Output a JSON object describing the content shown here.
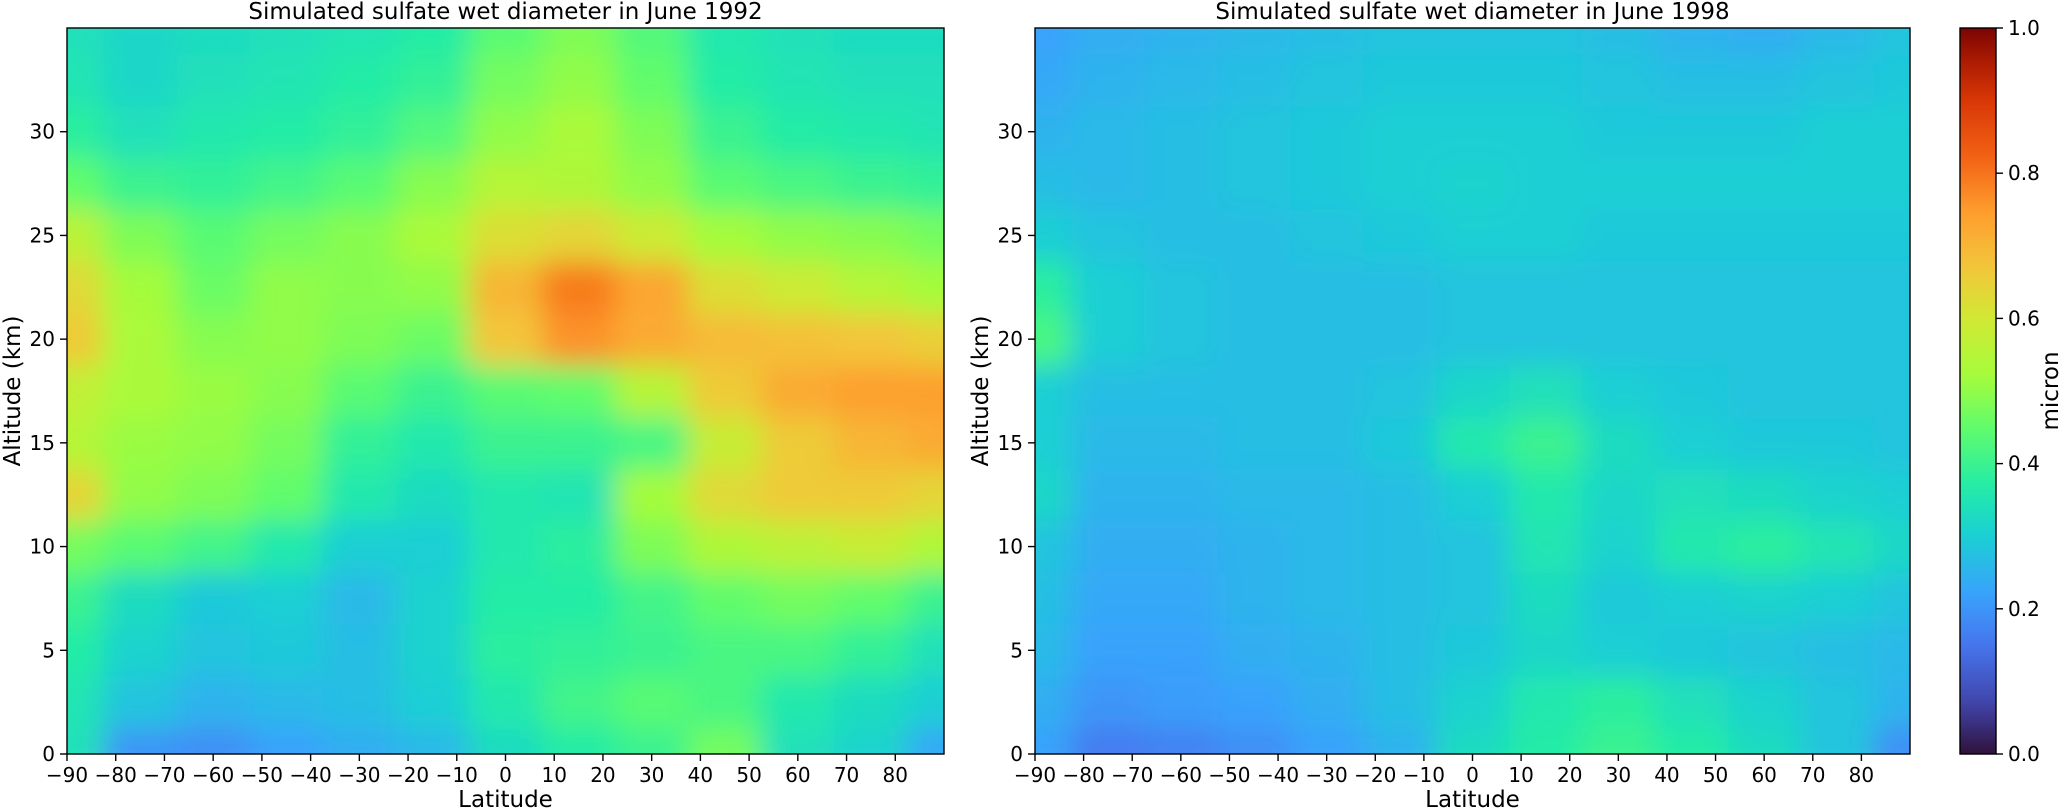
{
  "chart_data": [
    {
      "type": "heatmap",
      "title": "Simulated sulfate wet diameter in June 1992",
      "xlabel": "Latitude",
      "ylabel": "Altitude (km)",
      "xlim": [
        -90,
        90
      ],
      "ylim": [
        0,
        35
      ],
      "xticks": [
        -90,
        -80,
        -70,
        -60,
        -50,
        -40,
        -30,
        -20,
        -10,
        0,
        10,
        20,
        30,
        40,
        50,
        60,
        70,
        80
      ],
      "yticks": [
        0,
        5,
        10,
        15,
        20,
        25,
        30
      ],
      "latitudes": [
        -90,
        -75,
        -60,
        -45,
        -30,
        -15,
        0,
        15,
        30,
        45,
        60,
        75,
        90
      ],
      "altitudes": [
        0,
        2.5,
        5,
        7.5,
        10,
        12.5,
        15,
        17.5,
        20,
        22.5,
        25,
        27.5,
        30,
        32.5,
        35
      ],
      "values": [
        [
          0.34,
          0.2,
          0.19,
          0.22,
          0.24,
          0.26,
          0.33,
          0.37,
          0.4,
          0.47,
          0.34,
          0.31,
          0.23
        ],
        [
          0.35,
          0.28,
          0.25,
          0.26,
          0.27,
          0.3,
          0.36,
          0.41,
          0.44,
          0.42,
          0.36,
          0.33,
          0.3
        ],
        [
          0.37,
          0.31,
          0.28,
          0.29,
          0.27,
          0.31,
          0.38,
          0.39,
          0.4,
          0.42,
          0.42,
          0.39,
          0.34
        ],
        [
          0.4,
          0.33,
          0.29,
          0.3,
          0.26,
          0.31,
          0.37,
          0.37,
          0.41,
          0.45,
          0.47,
          0.45,
          0.4
        ],
        [
          0.47,
          0.44,
          0.41,
          0.36,
          0.3,
          0.3,
          0.36,
          0.38,
          0.48,
          0.54,
          0.56,
          0.58,
          0.54
        ],
        [
          0.64,
          0.5,
          0.48,
          0.45,
          0.36,
          0.33,
          0.36,
          0.35,
          0.52,
          0.63,
          0.66,
          0.66,
          0.64
        ],
        [
          0.55,
          0.51,
          0.5,
          0.47,
          0.39,
          0.36,
          0.4,
          0.4,
          0.42,
          0.58,
          0.66,
          0.7,
          0.72
        ],
        [
          0.57,
          0.53,
          0.51,
          0.49,
          0.44,
          0.4,
          0.44,
          0.45,
          0.55,
          0.66,
          0.72,
          0.74,
          0.74
        ],
        [
          0.66,
          0.53,
          0.49,
          0.5,
          0.48,
          0.46,
          0.67,
          0.76,
          0.72,
          0.69,
          0.68,
          0.67,
          0.65
        ],
        [
          0.63,
          0.52,
          0.46,
          0.5,
          0.49,
          0.5,
          0.7,
          0.79,
          0.73,
          0.62,
          0.59,
          0.55,
          0.52
        ],
        [
          0.56,
          0.48,
          0.44,
          0.47,
          0.49,
          0.53,
          0.62,
          0.64,
          0.59,
          0.52,
          0.5,
          0.49,
          0.47
        ],
        [
          0.45,
          0.4,
          0.39,
          0.41,
          0.44,
          0.49,
          0.55,
          0.54,
          0.5,
          0.44,
          0.42,
          0.4,
          0.39
        ],
        [
          0.38,
          0.34,
          0.36,
          0.37,
          0.39,
          0.43,
          0.5,
          0.53,
          0.48,
          0.4,
          0.37,
          0.36,
          0.35
        ],
        [
          0.35,
          0.32,
          0.34,
          0.35,
          0.37,
          0.39,
          0.47,
          0.5,
          0.45,
          0.37,
          0.35,
          0.34,
          0.34
        ],
        [
          0.34,
          0.32,
          0.33,
          0.34,
          0.35,
          0.37,
          0.44,
          0.48,
          0.43,
          0.36,
          0.34,
          0.33,
          0.33
        ]
      ]
    },
    {
      "type": "heatmap",
      "title": "Simulated sulfate wet diameter in June 1998",
      "xlabel": "Latitude",
      "ylabel": "Altitude (km)",
      "xlim": [
        -90,
        90
      ],
      "ylim": [
        0,
        35
      ],
      "xticks": [
        -90,
        -80,
        -70,
        -60,
        -50,
        -40,
        -30,
        -20,
        -10,
        0,
        10,
        20,
        30,
        40,
        50,
        60,
        70,
        80
      ],
      "yticks": [
        0,
        5,
        10,
        15,
        20,
        25,
        30
      ],
      "latitudes": [
        -90,
        -75,
        -60,
        -45,
        -30,
        -15,
        0,
        15,
        30,
        45,
        60,
        75,
        90
      ],
      "altitudes": [
        0,
        2.5,
        5,
        7.5,
        10,
        12.5,
        15,
        17.5,
        20,
        22.5,
        25,
        27.5,
        30,
        32.5,
        35
      ],
      "values": [
        [
          0.22,
          0.16,
          0.17,
          0.19,
          0.22,
          0.25,
          0.33,
          0.37,
          0.4,
          0.37,
          0.33,
          0.28,
          0.19
        ],
        [
          0.24,
          0.2,
          0.21,
          0.22,
          0.24,
          0.27,
          0.31,
          0.36,
          0.38,
          0.34,
          0.31,
          0.28,
          0.25
        ],
        [
          0.26,
          0.22,
          0.22,
          0.24,
          0.25,
          0.27,
          0.29,
          0.32,
          0.3,
          0.29,
          0.28,
          0.27,
          0.26
        ],
        [
          0.27,
          0.23,
          0.23,
          0.25,
          0.26,
          0.27,
          0.28,
          0.33,
          0.29,
          0.3,
          0.31,
          0.3,
          0.28
        ],
        [
          0.28,
          0.24,
          0.24,
          0.25,
          0.26,
          0.27,
          0.28,
          0.35,
          0.31,
          0.36,
          0.38,
          0.35,
          0.32
        ],
        [
          0.32,
          0.25,
          0.25,
          0.26,
          0.26,
          0.27,
          0.3,
          0.36,
          0.32,
          0.34,
          0.33,
          0.31,
          0.3
        ],
        [
          0.3,
          0.26,
          0.26,
          0.27,
          0.27,
          0.29,
          0.36,
          0.4,
          0.33,
          0.3,
          0.29,
          0.29,
          0.28
        ],
        [
          0.3,
          0.27,
          0.27,
          0.27,
          0.27,
          0.28,
          0.32,
          0.34,
          0.3,
          0.29,
          0.28,
          0.28,
          0.28
        ],
        [
          0.42,
          0.3,
          0.28,
          0.27,
          0.27,
          0.27,
          0.28,
          0.28,
          0.28,
          0.28,
          0.28,
          0.28,
          0.28
        ],
        [
          0.38,
          0.3,
          0.28,
          0.27,
          0.27,
          0.27,
          0.28,
          0.28,
          0.28,
          0.28,
          0.28,
          0.28,
          0.28
        ],
        [
          0.3,
          0.28,
          0.27,
          0.27,
          0.28,
          0.29,
          0.3,
          0.3,
          0.29,
          0.29,
          0.29,
          0.29,
          0.29
        ],
        [
          0.27,
          0.26,
          0.27,
          0.28,
          0.29,
          0.3,
          0.31,
          0.3,
          0.3,
          0.3,
          0.3,
          0.3,
          0.3
        ],
        [
          0.25,
          0.26,
          0.27,
          0.28,
          0.29,
          0.3,
          0.3,
          0.3,
          0.29,
          0.29,
          0.29,
          0.3,
          0.3
        ],
        [
          0.23,
          0.25,
          0.26,
          0.27,
          0.28,
          0.29,
          0.29,
          0.29,
          0.28,
          0.27,
          0.27,
          0.28,
          0.29
        ],
        [
          0.22,
          0.24,
          0.25,
          0.26,
          0.27,
          0.28,
          0.28,
          0.28,
          0.27,
          0.25,
          0.24,
          0.26,
          0.28
        ]
      ]
    }
  ],
  "colorbar": {
    "label": "micron",
    "ticks": [
      "0.0",
      "0.2",
      "0.4",
      "0.6",
      "0.8",
      "1.0"
    ],
    "range": [
      0,
      1
    ],
    "colormap": "turbo"
  }
}
